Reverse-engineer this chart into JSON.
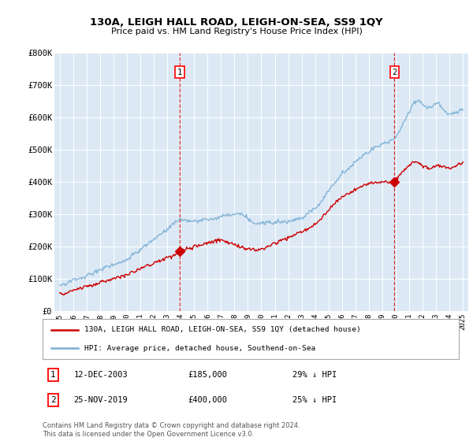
{
  "title": "130A, LEIGH HALL ROAD, LEIGH-ON-SEA, SS9 1QY",
  "subtitle": "Price paid vs. HM Land Registry's House Price Index (HPI)",
  "hpi_color": "#7bafd4",
  "price_color": "#cc0000",
  "marker1_date": 2003.92,
  "marker1_price": 185000,
  "marker1_label": "1",
  "marker2_date": 2019.9,
  "marker2_price": 400000,
  "marker2_label": "2",
  "legend_line1": "130A, LEIGH HALL ROAD, LEIGH-ON-SEA, SS9 1QY (detached house)",
  "legend_line2": "HPI: Average price, detached house, Southend-on-Sea",
  "footnote1": "Contains HM Land Registry data © Crown copyright and database right 2024.",
  "footnote2": "This data is licensed under the Open Government Licence v3.0.",
  "ylim": [
    0,
    800000
  ],
  "yticks": [
    0,
    100000,
    200000,
    300000,
    400000,
    500000,
    600000,
    700000,
    800000
  ],
  "ytick_labels": [
    "£0",
    "£100K",
    "£200K",
    "£300K",
    "£400K",
    "£500K",
    "£600K",
    "£700K",
    "£800K"
  ],
  "xlim_start": 1994.6,
  "xlim_end": 2025.4,
  "bg_color": "#ffffff",
  "plot_bg_color": "#dce9f5",
  "grid_color": "#ffffff"
}
